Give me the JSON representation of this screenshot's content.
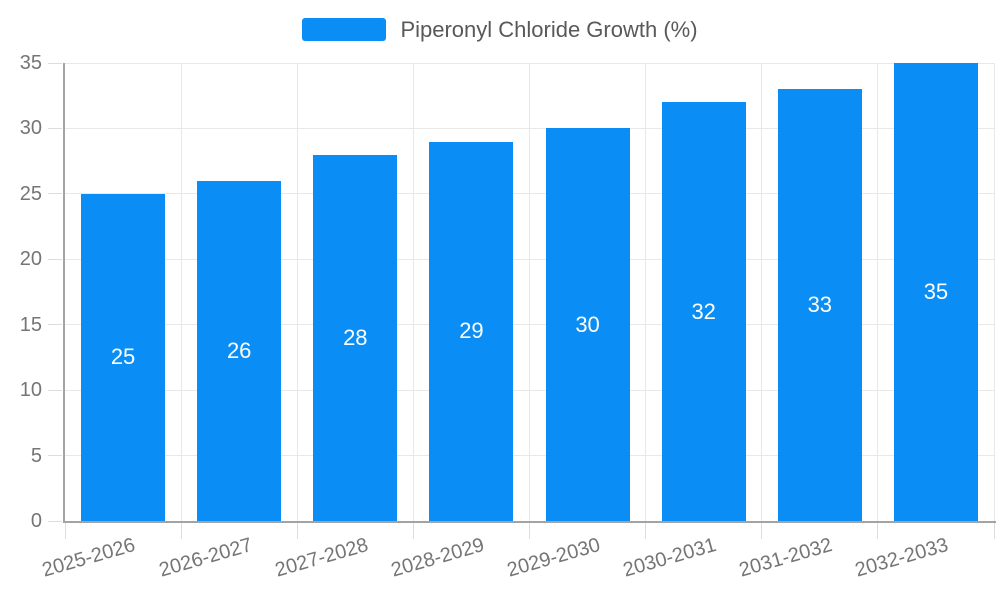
{
  "legend": {
    "label": "Piperonyl Chloride Growth (%)"
  },
  "chart_data": {
    "type": "bar",
    "title": "",
    "categories": [
      "2025-2026",
      "2026-2027",
      "2027-2028",
      "2028-2029",
      "2029-2030",
      "2030-2031",
      "2031-2032",
      "2032-2033"
    ],
    "series": [
      {
        "name": "Piperonyl Chloride Growth (%)",
        "values": [
          25,
          26,
          28,
          29,
          30,
          32,
          33,
          35
        ]
      }
    ],
    "xlabel": "",
    "ylabel": "",
    "ylim": [
      0,
      35
    ],
    "yticks": [
      0,
      5,
      10,
      15,
      20,
      25,
      30,
      35
    ],
    "grid": true,
    "legend_position": "top-center",
    "value_labels": "inside-center",
    "x_label_rotation_deg": -16
  },
  "colors": {
    "bar": "#0a8ef5",
    "grid": "#e8e8e8",
    "tick": "#dcdcdc",
    "axis": "#a3a3a3",
    "axis_label": "#757575",
    "legend_text": "#595959",
    "value_label": "#ffffff",
    "background": "#ffffff"
  }
}
